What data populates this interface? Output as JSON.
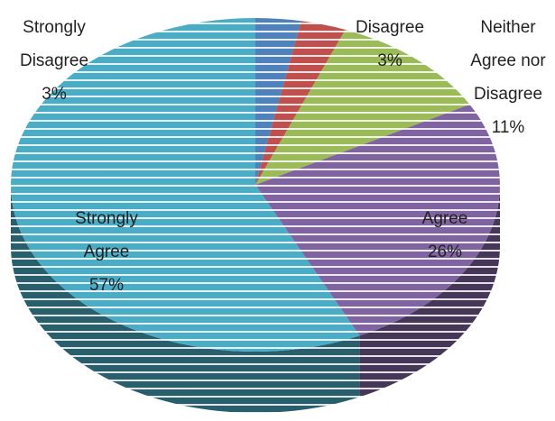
{
  "chart_data": {
    "type": "pie",
    "categories": [
      "Strongly Disagree",
      "Disagree",
      "Neither Agree nor Disagree",
      "Agree",
      "Strongly Agree"
    ],
    "values": [
      3,
      3,
      11,
      26,
      57
    ],
    "value_labels": [
      "3%",
      "3%",
      "11%",
      "26%",
      "57%"
    ],
    "colors": [
      "#4f81bd",
      "#c0504d",
      "#9bbb59",
      "#8064a2",
      "#4bacc6"
    ]
  }
}
